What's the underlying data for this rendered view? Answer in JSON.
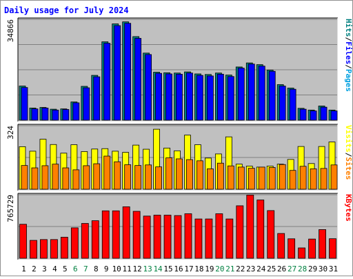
{
  "chart_data": [
    {
      "type": "bar",
      "title": "Daily usage for July 2024",
      "panel": "top",
      "ymax_label": "34866",
      "ylim": [
        0,
        34866
      ],
      "colors": {
        "Pages": "#00a0e0",
        "Files": "#0000ff",
        "Hits": "#008080"
      },
      "ylabel_parts": [
        "Pages",
        "Files",
        "Hits"
      ],
      "grid": true,
      "categories": [
        "1",
        "2",
        "3",
        "4",
        "5",
        "6",
        "7",
        "8",
        "9",
        "10",
        "11",
        "12",
        "13",
        "14",
        "15",
        "16",
        "17",
        "18",
        "19",
        "20",
        "21",
        "22",
        "23",
        "24",
        "25",
        "26",
        "27",
        "28",
        "29",
        "30",
        "31"
      ],
      "series": [
        {
          "name": "Hits",
          "values": [
            11800,
            4200,
            4400,
            3800,
            3900,
            6300,
            11700,
            15500,
            27100,
            33300,
            34000,
            28900,
            23200,
            16600,
            16400,
            16300,
            16700,
            16000,
            15800,
            16300,
            15600,
            18400,
            19800,
            19200,
            17300,
            12300,
            11100,
            4100,
            3500,
            4900,
            3500
          ]
        },
        {
          "name": "Files",
          "values": [
            11300,
            3900,
            4200,
            3500,
            3700,
            6000,
            11200,
            15000,
            26600,
            32700,
            33500,
            28300,
            22700,
            16200,
            16000,
            15900,
            16300,
            15500,
            15300,
            15900,
            15100,
            18000,
            19400,
            18700,
            16900,
            11800,
            10700,
            3800,
            3200,
            4500,
            3200
          ]
        }
      ]
    },
    {
      "type": "bar",
      "panel": "middle",
      "ymax_label": "324",
      "ylim": [
        0,
        324
      ],
      "colors": {
        "Sites": "#ff8000",
        "Visits": "#ffff00"
      },
      "ylabel_parts": [
        "Sites",
        "Visits"
      ],
      "series": [
        {
          "name": "Visits",
          "values": [
            217,
            194,
            255,
            228,
            184,
            227,
            192,
            205,
            207,
            194,
            188,
            225,
            204,
            306,
            210,
            196,
            276,
            227,
            159,
            180,
            267,
            128,
            118,
            113,
            118,
            128,
            152,
            218,
            131,
            218,
            241
          ]
        },
        {
          "name": "Sites",
          "values": [
            121,
            109,
            120,
            128,
            109,
            99,
            120,
            130,
            169,
            140,
            125,
            121,
            124,
            114,
            160,
            155,
            151,
            145,
            104,
            133,
            119,
            113,
            107,
            113,
            111,
            126,
            96,
            117,
            104,
            106,
            124
          ]
        }
      ]
    },
    {
      "type": "bar",
      "panel": "bottom",
      "ymax_label": "765729",
      "ylim": [
        0,
        765729
      ],
      "colors": {
        "KBytes": "#ff0000"
      },
      "ylabel_parts": [
        "KBytes"
      ],
      "series": [
        {
          "name": "KBytes",
          "values": [
            410000,
            216000,
            226000,
            226000,
            254000,
            367000,
            420000,
            453000,
            572000,
            572000,
            621000,
            566000,
            509000,
            520000,
            520000,
            515000,
            537000,
            474000,
            474000,
            537000,
            474000,
            633000,
            762000,
            703000,
            575000,
            299000,
            235000,
            125000,
            232000,
            346000,
            236000
          ]
        }
      ]
    }
  ],
  "weekend_days": [
    6,
    7,
    13,
    14,
    20,
    21,
    27,
    28
  ],
  "colors": {
    "title": "#0000ff",
    "background": "#ffffff",
    "plot": "#c0c0c0",
    "grid": "#808080",
    "axis_text": "#000000",
    "weekend_text": "#008040"
  }
}
